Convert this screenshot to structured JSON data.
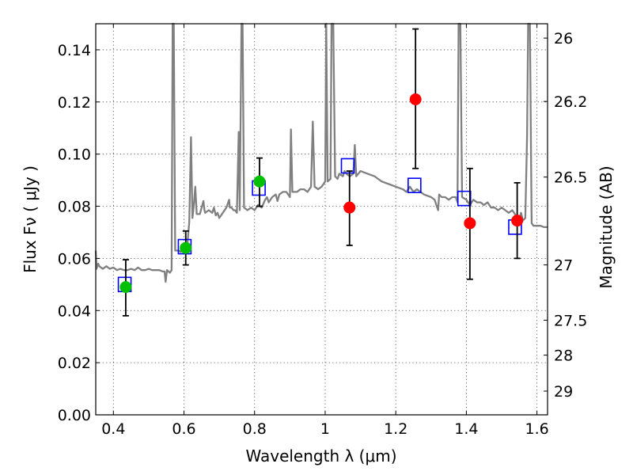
{
  "chart_data": {
    "type": "scatter",
    "xlabel": "Wavelength  λ (μm)",
    "ylabel": "Flux  Fν  ( μJy )",
    "y2label": "Magnitude (AB)",
    "xlim": [
      0.35,
      1.63
    ],
    "ylim": [
      0.0,
      0.15
    ],
    "grid": true,
    "x_ticks": [
      0.4,
      0.6,
      0.8,
      1.0,
      1.2,
      1.4,
      1.6
    ],
    "x_tick_labels": [
      "0.4",
      "0.6",
      "0.8",
      "1",
      "1.2",
      "1.4",
      "1.6"
    ],
    "y_ticks": [
      0.0,
      0.02,
      0.04,
      0.06,
      0.08,
      0.1,
      0.12,
      0.14
    ],
    "y_tick_labels": [
      "0.00",
      "0.02",
      "0.04",
      "0.06",
      "0.08",
      "0.10",
      "0.12",
      "0.14"
    ],
    "y2_ticks": [
      {
        "label": "26",
        "flux": 0.1445
      },
      {
        "label": "26.2",
        "flux": 0.1202
      },
      {
        "label": "26.5",
        "flux": 0.0912
      },
      {
        "label": "27",
        "flux": 0.0575
      },
      {
        "label": "27.5",
        "flux": 0.0363
      },
      {
        "label": "28",
        "flux": 0.0229
      },
      {
        "label": "29",
        "flux": 0.0091
      }
    ],
    "colors": {
      "spectrum": "#808080",
      "green_points": "#00c000",
      "red_points": "#ff0000",
      "model_squares": "#0000ff",
      "error_bars": "#000000"
    },
    "series": [
      {
        "kind": "spectrum",
        "points": [
          [
            0.35,
            0.063
          ],
          [
            0.352,
            0.056
          ],
          [
            0.357,
            0.058
          ],
          [
            0.36,
            0.057
          ],
          [
            0.37,
            0.056
          ],
          [
            0.38,
            0.057
          ],
          [
            0.39,
            0.056
          ],
          [
            0.4,
            0.0565
          ],
          [
            0.41,
            0.0555
          ],
          [
            0.42,
            0.056
          ],
          [
            0.43,
            0.0555
          ],
          [
            0.44,
            0.0555
          ],
          [
            0.45,
            0.056
          ],
          [
            0.46,
            0.0555
          ],
          [
            0.47,
            0.0565
          ],
          [
            0.48,
            0.0555
          ],
          [
            0.49,
            0.0555
          ],
          [
            0.5,
            0.056
          ],
          [
            0.51,
            0.0555
          ],
          [
            0.52,
            0.0555
          ],
          [
            0.53,
            0.0555
          ],
          [
            0.54,
            0.055
          ],
          [
            0.545,
            0.055
          ],
          [
            0.548,
            0.051
          ],
          [
            0.552,
            0.0555
          ],
          [
            0.56,
            0.0545
          ],
          [
            0.565,
            0.0555
          ],
          [
            0.568,
            0.15
          ],
          [
            0.571,
            0.15
          ],
          [
            0.575,
            0.063
          ],
          [
            0.585,
            0.063
          ],
          [
            0.59,
            0.0625
          ],
          [
            0.595,
            0.0645
          ],
          [
            0.6,
            0.0655
          ],
          [
            0.61,
            0.066
          ],
          [
            0.615,
            0.074
          ],
          [
            0.62,
            0.1065
          ],
          [
            0.624,
            0.0755
          ],
          [
            0.628,
            0.0805
          ],
          [
            0.632,
            0.0875
          ],
          [
            0.636,
            0.077
          ],
          [
            0.645,
            0.077
          ],
          [
            0.655,
            0.082
          ],
          [
            0.658,
            0.0785
          ],
          [
            0.66,
            0.0775
          ],
          [
            0.67,
            0.0785
          ],
          [
            0.68,
            0.0775
          ],
          [
            0.685,
            0.0795
          ],
          [
            0.69,
            0.0765
          ],
          [
            0.695,
            0.0775
          ],
          [
            0.7,
            0.0755
          ],
          [
            0.71,
            0.0775
          ],
          [
            0.72,
            0.0795
          ],
          [
            0.728,
            0.0825
          ],
          [
            0.73,
            0.0795
          ],
          [
            0.735,
            0.0795
          ],
          [
            0.74,
            0.0785
          ],
          [
            0.745,
            0.0785
          ],
          [
            0.75,
            0.0775
          ],
          [
            0.755,
            0.1085
          ],
          [
            0.758,
            0.0785
          ],
          [
            0.763,
            0.15
          ],
          [
            0.766,
            0.15
          ],
          [
            0.77,
            0.0795
          ],
          [
            0.78,
            0.0785
          ],
          [
            0.79,
            0.0795
          ],
          [
            0.8,
            0.0785
          ],
          [
            0.81,
            0.0805
          ],
          [
            0.82,
            0.0795
          ],
          [
            0.83,
            0.0825
          ],
          [
            0.835,
            0.0835
          ],
          [
            0.84,
            0.0815
          ],
          [
            0.85,
            0.0835
          ],
          [
            0.86,
            0.0845
          ],
          [
            0.865,
            0.082
          ],
          [
            0.87,
            0.0845
          ],
          [
            0.88,
            0.0855
          ],
          [
            0.89,
            0.0855
          ],
          [
            0.9,
            0.0835
          ],
          [
            0.903,
            0.1095
          ],
          [
            0.907,
            0.0855
          ],
          [
            0.92,
            0.0855
          ],
          [
            0.93,
            0.0865
          ],
          [
            0.94,
            0.0865
          ],
          [
            0.95,
            0.0855
          ],
          [
            0.96,
            0.0875
          ],
          [
            0.965,
            0.1125
          ],
          [
            0.97,
            0.0875
          ],
          [
            0.98,
            0.0865
          ],
          [
            0.99,
            0.0875
          ],
          [
            1.0,
            0.0895
          ],
          [
            1.003,
            0.15
          ],
          [
            1.007,
            0.0895
          ],
          [
            1.015,
            0.0905
          ],
          [
            1.018,
            0.15
          ],
          [
            1.023,
            0.15
          ],
          [
            1.028,
            0.0915
          ],
          [
            1.035,
            0.0905
          ],
          [
            1.04,
            0.0925
          ],
          [
            1.05,
            0.0915
          ],
          [
            1.055,
            0.0935
          ],
          [
            1.06,
            0.0925
          ],
          [
            1.07,
            0.0915
          ],
          [
            1.08,
            0.0925
          ],
          [
            1.084,
            0.1035
          ],
          [
            1.088,
            0.0915
          ],
          [
            1.1,
            0.0935
          ],
          [
            1.12,
            0.0925
          ],
          [
            1.14,
            0.0915
          ],
          [
            1.15,
            0.0905
          ],
          [
            1.16,
            0.0895
          ],
          [
            1.18,
            0.0885
          ],
          [
            1.2,
            0.0875
          ],
          [
            1.22,
            0.0865
          ],
          [
            1.23,
            0.0855
          ],
          [
            1.24,
            0.0875
          ],
          [
            1.25,
            0.0855
          ],
          [
            1.26,
            0.0865
          ],
          [
            1.28,
            0.0845
          ],
          [
            1.3,
            0.0835
          ],
          [
            1.31,
            0.0825
          ],
          [
            1.32,
            0.0785
          ],
          [
            1.323,
            0.0845
          ],
          [
            1.33,
            0.0835
          ],
          [
            1.34,
            0.0835
          ],
          [
            1.35,
            0.0825
          ],
          [
            1.36,
            0.0835
          ],
          [
            1.37,
            0.0835
          ],
          [
            1.375,
            0.0815
          ],
          [
            1.378,
            0.15
          ],
          [
            1.383,
            0.15
          ],
          [
            1.388,
            0.0835
          ],
          [
            1.4,
            0.0825
          ],
          [
            1.41,
            0.0805
          ],
          [
            1.42,
            0.0825
          ],
          [
            1.43,
            0.0815
          ],
          [
            1.44,
            0.0815
          ],
          [
            1.45,
            0.0805
          ],
          [
            1.46,
            0.0815
          ],
          [
            1.47,
            0.0795
          ],
          [
            1.48,
            0.0795
          ],
          [
            1.49,
            0.0785
          ],
          [
            1.5,
            0.0795
          ],
          [
            1.51,
            0.0785
          ],
          [
            1.52,
            0.0775
          ],
          [
            1.53,
            0.0785
          ],
          [
            1.54,
            0.0765
          ],
          [
            1.55,
            0.0745
          ],
          [
            1.555,
            0.0775
          ],
          [
            1.56,
            0.0745
          ],
          [
            1.567,
            0.0755
          ],
          [
            1.572,
            0.1065
          ],
          [
            1.575,
            0.15
          ],
          [
            1.58,
            0.15
          ],
          [
            1.585,
            0.0735
          ],
          [
            1.59,
            0.0725
          ],
          [
            1.6,
            0.0725
          ],
          [
            1.61,
            0.0725
          ],
          [
            1.62,
            0.072
          ],
          [
            1.63,
            0.072
          ]
        ]
      },
      {
        "kind": "green_points",
        "points": [
          {
            "x": 0.435,
            "y": 0.049,
            "yerr_low": 0.038,
            "yerr_high": 0.0595
          },
          {
            "x": 0.605,
            "y": 0.064,
            "yerr_low": 0.0575,
            "yerr_high": 0.0705
          },
          {
            "x": 0.814,
            "y": 0.0895,
            "yerr_low": 0.08,
            "yerr_high": 0.0985
          }
        ]
      },
      {
        "kind": "red_points",
        "points": [
          {
            "x": 1.069,
            "y": 0.0795,
            "yerr_low": 0.065,
            "yerr_high": 0.0935
          },
          {
            "x": 1.256,
            "y": 0.121,
            "yerr_low": 0.0945,
            "yerr_high": 0.148
          },
          {
            "x": 1.41,
            "y": 0.0735,
            "yerr_low": 0.052,
            "yerr_high": 0.0945
          },
          {
            "x": 1.544,
            "y": 0.0745,
            "yerr_low": 0.06,
            "yerr_high": 0.089
          }
        ]
      },
      {
        "kind": "model_squares",
        "points": [
          {
            "x": 0.432,
            "y": 0.05
          },
          {
            "x": 0.602,
            "y": 0.0645
          },
          {
            "x": 0.812,
            "y": 0.087
          },
          {
            "x": 1.064,
            "y": 0.0955
          },
          {
            "x": 1.253,
            "y": 0.088
          },
          {
            "x": 1.394,
            "y": 0.083
          },
          {
            "x": 1.538,
            "y": 0.072
          }
        ]
      }
    ]
  }
}
